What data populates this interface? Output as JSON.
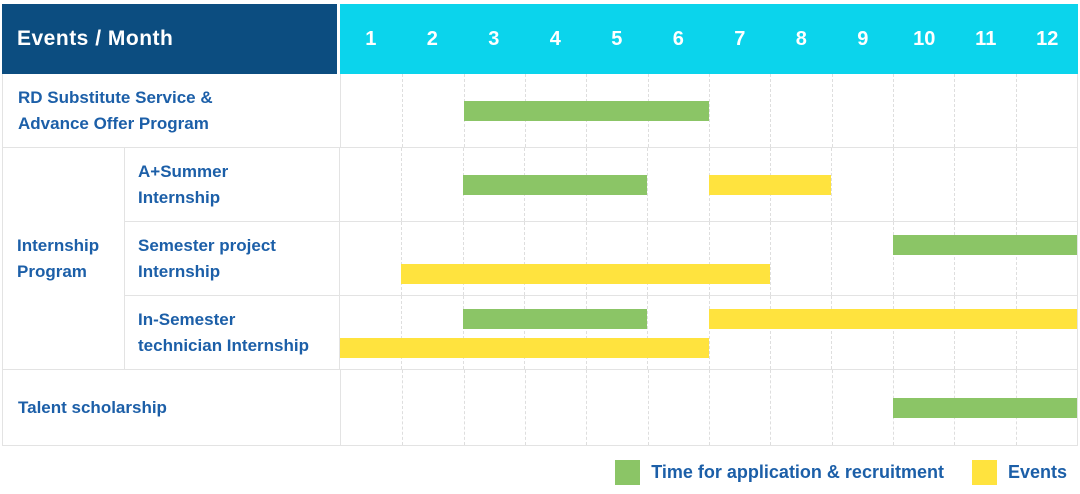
{
  "colors": {
    "header_bg": "#0C4D80",
    "months_bg": "#0BD4EC",
    "label_text": "#1C5FA8",
    "recruitment": "#8BC566",
    "event": "#FFE33E",
    "gridline": "#DEDEDE"
  },
  "header": {
    "title": "Events / Month",
    "months": [
      "1",
      "2",
      "3",
      "4",
      "5",
      "6",
      "7",
      "8",
      "9",
      "10",
      "11",
      "12"
    ]
  },
  "rows": {
    "rd": {
      "lines": [
        "RD Substitute Service &",
        "Advance Offer Program"
      ],
      "bars": [
        {
          "type": "recruitment",
          "from": 3,
          "to": 6,
          "lane": "mid"
        }
      ]
    },
    "group": {
      "lines": [
        "Internship",
        "Program"
      ]
    },
    "summer": {
      "lines": [
        "A+Summer",
        "Internship"
      ],
      "bars": [
        {
          "type": "recruitment",
          "from": 3,
          "to": 5,
          "lane": "mid"
        },
        {
          "type": "event",
          "from": 7,
          "to": 8,
          "lane": "mid"
        }
      ]
    },
    "semester": {
      "lines": [
        "Semester project",
        "Internship"
      ],
      "bars": [
        {
          "type": "recruitment",
          "from": 10,
          "to": 12,
          "lane": "top"
        },
        {
          "type": "event",
          "from": 2,
          "to": 7,
          "lane": "bottom"
        }
      ]
    },
    "technician": {
      "lines": [
        "In-Semester",
        "technician Internship"
      ],
      "bars": [
        {
          "type": "recruitment",
          "from": 3,
          "to": 5,
          "lane": "top"
        },
        {
          "type": "event",
          "from": 7,
          "to": 12,
          "lane": "top"
        },
        {
          "type": "event",
          "from": 1,
          "to": 6,
          "lane": "bottom"
        }
      ]
    },
    "talent": {
      "lines": [
        "Talent scholarship"
      ],
      "bars": [
        {
          "type": "recruitment",
          "from": 10,
          "to": 12,
          "lane": "mid"
        }
      ]
    }
  },
  "legend": {
    "items": [
      {
        "type": "recruitment",
        "label": "Time for application & recruitment"
      },
      {
        "type": "event",
        "label": "Events"
      }
    ]
  },
  "chart_data": {
    "type": "table",
    "title": "Events / Month",
    "x": [
      1,
      2,
      3,
      4,
      5,
      6,
      7,
      8,
      9,
      10,
      11,
      12
    ],
    "xlabel": "Month",
    "legend_position": "bottom-right",
    "series": [
      {
        "name": "RD Substitute Service & Advance Offer Program",
        "recruitment_months": [
          [
            3,
            6
          ]
        ],
        "event_months": []
      },
      {
        "name": "Internship Program / A+Summer Internship",
        "recruitment_months": [
          [
            3,
            5
          ]
        ],
        "event_months": [
          [
            7,
            8
          ]
        ]
      },
      {
        "name": "Internship Program / Semester project Internship",
        "recruitment_months": [
          [
            10,
            12
          ]
        ],
        "event_months": [
          [
            2,
            7
          ]
        ]
      },
      {
        "name": "Internship Program / In-Semester technician Internship",
        "recruitment_months": [
          [
            3,
            5
          ]
        ],
        "event_months": [
          [
            7,
            12
          ],
          [
            1,
            6
          ]
        ]
      },
      {
        "name": "Talent scholarship",
        "recruitment_months": [
          [
            10,
            12
          ]
        ],
        "event_months": []
      }
    ]
  }
}
